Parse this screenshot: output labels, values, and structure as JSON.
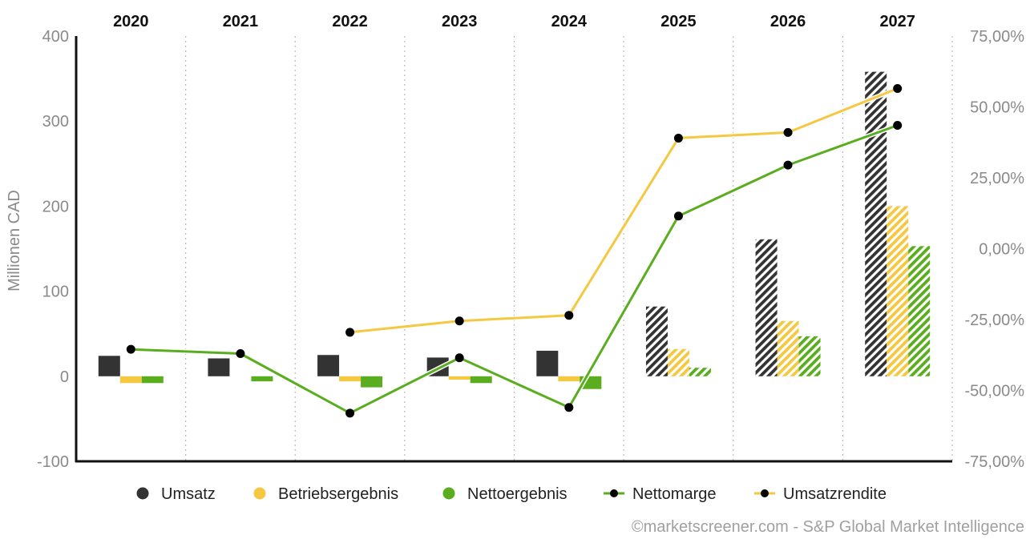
{
  "chart_data": {
    "type": "bar",
    "categories": [
      "2020",
      "2021",
      "2022",
      "2023",
      "2024",
      "2025",
      "2026",
      "2027"
    ],
    "ylabel": "Millionen CAD",
    "ylim": [
      -100,
      400
    ],
    "yticks": [
      "-100",
      "0",
      "100",
      "200",
      "300",
      "400"
    ],
    "y2lim": [
      -75,
      75
    ],
    "y2ticks": [
      "-75,00%",
      "-50,00%",
      "-25,00%",
      "0,00%",
      "25,00%",
      "50,00%",
      "75,00%"
    ],
    "forecast_from": "2025",
    "series": [
      {
        "name": "Umsatz",
        "kind": "bar",
        "color": "#333333",
        "values": [
          24,
          21,
          25,
          22,
          30,
          82,
          161,
          358
        ]
      },
      {
        "name": "Betriebsergebnis",
        "kind": "bar",
        "color": "#f5c842",
        "values": [
          -8,
          null,
          -6,
          -4,
          -6,
          32,
          65,
          200
        ]
      },
      {
        "name": "Nettoergebnis",
        "kind": "bar",
        "color": "#5aad1e",
        "values": [
          -8,
          -6,
          -13,
          -8,
          -15,
          10,
          47,
          153
        ]
      },
      {
        "name": "Nettomarge",
        "kind": "line",
        "axis": "right",
        "color": "#5aad1e",
        "values": [
          -35.5,
          -37,
          -58,
          -38.5,
          -56,
          11.5,
          29.5,
          43.5
        ]
      },
      {
        "name": "Umsatzrendite",
        "kind": "line",
        "axis": "right",
        "color": "#f5c842",
        "values": [
          null,
          null,
          -29.5,
          -25.5,
          -23.5,
          39,
          41,
          56.5
        ]
      }
    ],
    "grid": "vertical dotted separators between years",
    "legend": "bottom"
  },
  "legend": [
    {
      "label": "Umsatz",
      "marker": "dot",
      "color": "#333333"
    },
    {
      "label": "Betriebsergebnis",
      "marker": "dot",
      "color": "#f5c842"
    },
    {
      "label": "Nettoergebnis",
      "marker": "dot",
      "color": "#5aad1e"
    },
    {
      "label": "Nettomarge",
      "marker": "line",
      "color": "#5aad1e"
    },
    {
      "label": "Umsatzrendite",
      "marker": "line",
      "color": "#f5c842"
    }
  ],
  "credit": "©marketscreener.com - S&P Global Market Intelligence"
}
